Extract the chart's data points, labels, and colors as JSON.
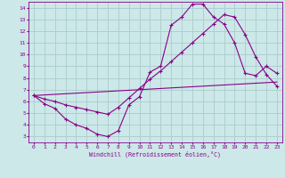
{
  "xlabel": "Windchill (Refroidissement éolien,°C)",
  "xlim": [
    -0.5,
    23.5
  ],
  "ylim": [
    2.5,
    14.5
  ],
  "xticks": [
    0,
    1,
    2,
    3,
    4,
    5,
    6,
    7,
    8,
    9,
    10,
    11,
    12,
    13,
    14,
    15,
    16,
    17,
    18,
    19,
    20,
    21,
    22,
    23
  ],
  "yticks": [
    3,
    4,
    5,
    6,
    7,
    8,
    9,
    10,
    11,
    12,
    13,
    14
  ],
  "bg_color": "#cce8e8",
  "line_color": "#880088",
  "grid_color": "#aacccc",
  "line1_x": [
    0,
    1,
    2,
    3,
    4,
    5,
    6,
    7,
    8,
    9,
    10,
    11,
    12,
    13,
    14,
    15,
    16,
    17,
    18,
    19,
    20,
    21,
    22,
    23
  ],
  "line1_y": [
    6.5,
    5.8,
    5.4,
    4.5,
    4.0,
    3.7,
    3.2,
    3.0,
    3.5,
    5.7,
    6.4,
    8.5,
    9.0,
    12.5,
    13.2,
    14.3,
    14.3,
    13.2,
    12.6,
    11.0,
    8.4,
    8.2,
    9.0,
    8.4
  ],
  "line2_x": [
    0,
    1,
    2,
    3,
    4,
    5,
    6,
    7,
    8,
    9,
    10,
    11,
    12,
    13,
    14,
    15,
    16,
    17,
    18,
    19,
    20,
    21,
    22,
    23
  ],
  "line2_y": [
    6.5,
    6.2,
    6.0,
    5.7,
    5.5,
    5.3,
    5.1,
    4.9,
    5.5,
    6.3,
    7.1,
    7.9,
    8.6,
    9.4,
    10.2,
    11.0,
    11.8,
    12.6,
    13.4,
    13.2,
    11.7,
    9.8,
    8.3,
    7.3
  ],
  "line3_x": [
    0,
    1,
    2,
    3,
    4,
    5,
    6,
    7,
    8,
    9,
    10,
    11,
    12,
    13,
    14,
    15,
    16,
    17,
    18,
    19,
    20,
    21,
    22,
    23
  ],
  "line3_y": [
    6.5,
    6.55,
    6.6,
    6.65,
    6.7,
    6.75,
    6.8,
    6.85,
    6.9,
    6.95,
    7.0,
    7.05,
    7.1,
    7.15,
    7.2,
    7.25,
    7.3,
    7.35,
    7.4,
    7.45,
    7.5,
    7.55,
    7.6,
    7.65
  ]
}
